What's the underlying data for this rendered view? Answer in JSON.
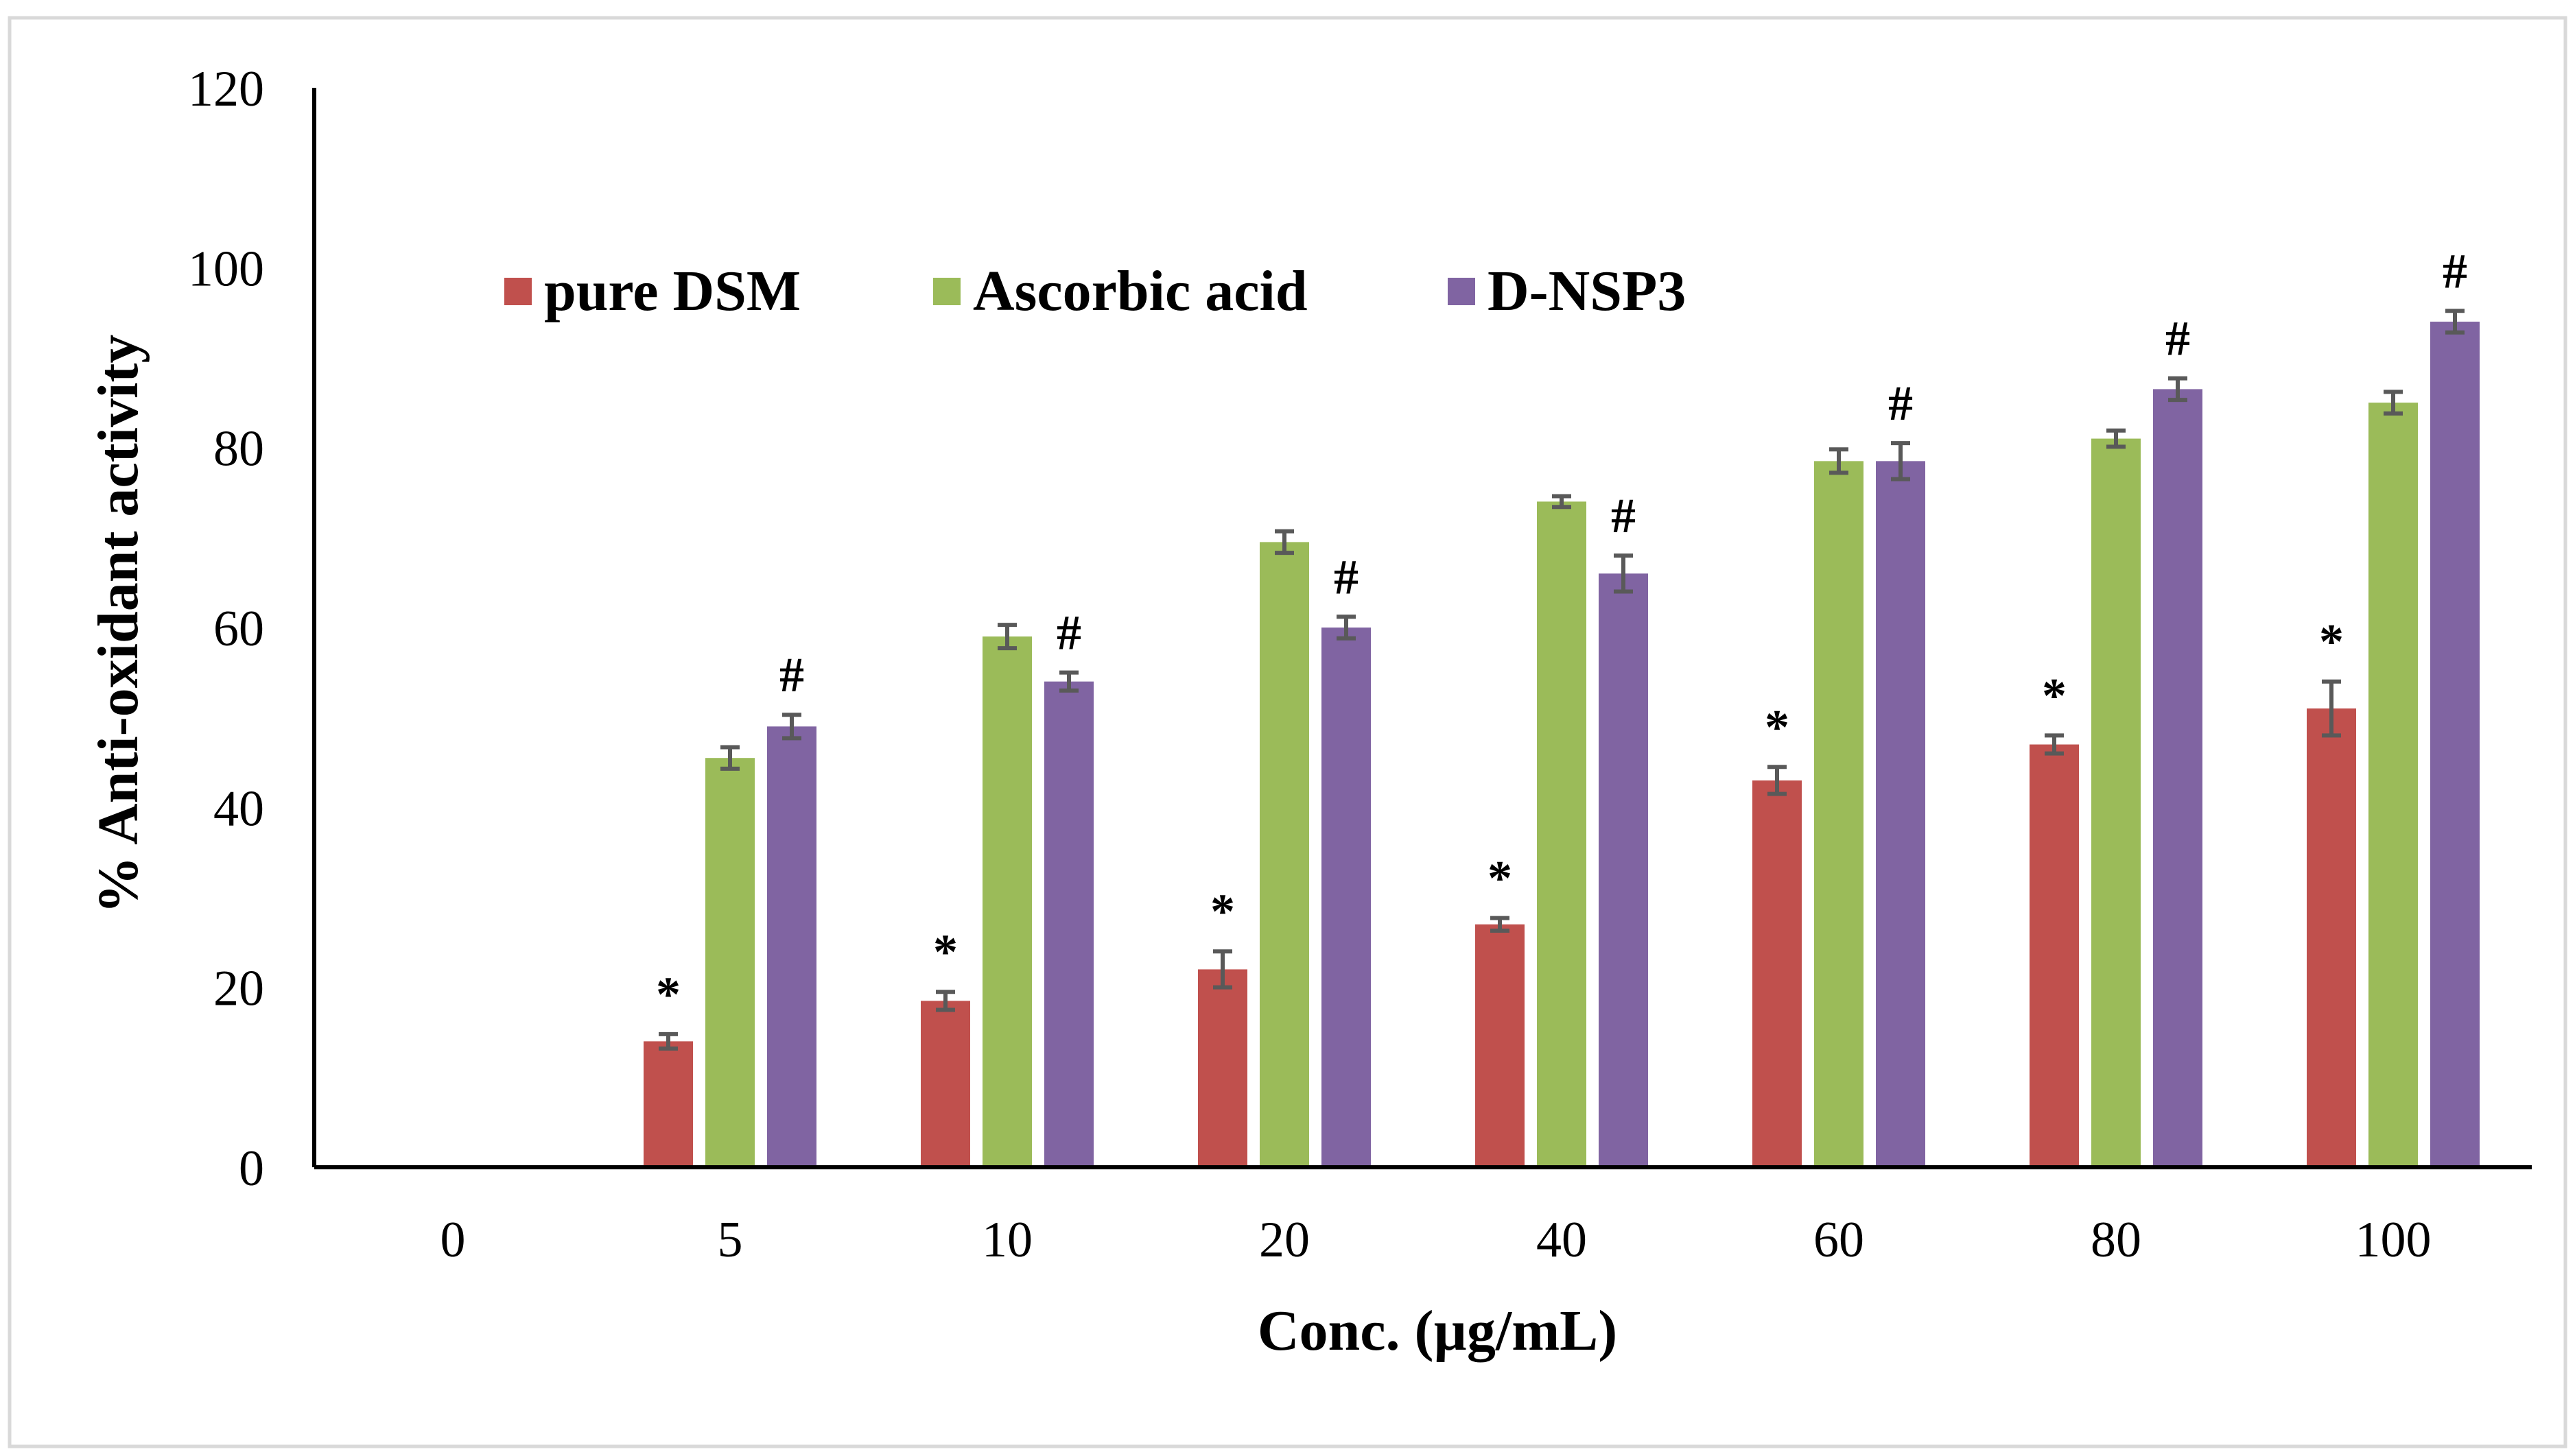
{
  "chart_data": {
    "type": "bar",
    "title": "",
    "xlabel": "Conc. (µg/mL)",
    "ylabel": "% Anti-oxidant activity",
    "ylim": [
      0,
      120
    ],
    "yticks": [
      "0",
      "20",
      "40",
      "60",
      "80",
      "100",
      "120"
    ],
    "categories": [
      "0",
      "5",
      "10",
      "20",
      "40",
      "60",
      "80",
      "100"
    ],
    "grid": false,
    "legend_position": "top-left",
    "series": [
      {
        "name": "pure DSM",
        "color": "#c0504d",
        "values": [
          0,
          14,
          18.5,
          22,
          27,
          43,
          47,
          51
        ],
        "errors": [
          0,
          0.8,
          1,
          2,
          0.7,
          1.5,
          1,
          3
        ],
        "markers": [
          "",
          "*",
          "*",
          "*",
          "*",
          "*",
          "*",
          "*"
        ]
      },
      {
        "name": "Ascorbic acid",
        "color": "#9bbb59",
        "values": [
          0,
          45.5,
          59,
          69.5,
          74,
          78.5,
          81,
          85
        ],
        "errors": [
          0,
          1.2,
          1.3,
          1.2,
          0.6,
          1.3,
          0.9,
          1.2
        ],
        "markers": [
          "",
          "",
          "",
          "",
          "",
          "",
          "",
          ""
        ]
      },
      {
        "name": "D-NSP3",
        "color": "#8064a2",
        "values": [
          0,
          49,
          54,
          60,
          66,
          78.5,
          86.5,
          94
        ],
        "errors": [
          0,
          1.3,
          1,
          1.2,
          2,
          2,
          1.2,
          1.2
        ],
        "markers": [
          "",
          "#",
          "#",
          "#",
          "#",
          "#",
          "#",
          "#"
        ]
      }
    ]
  }
}
